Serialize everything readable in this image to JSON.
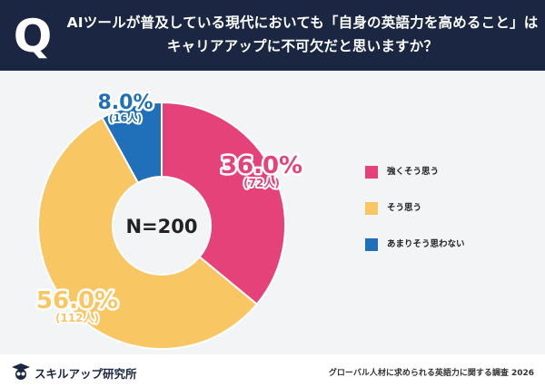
{
  "header": {
    "q_mark": "Q",
    "question_line1": "AIツールが普及している現代においても「自身の英語力を高めること」は",
    "question_line2": "キャリアアップに不可欠だと思いますか？"
  },
  "chart_data": {
    "type": "pie",
    "subtype": "donut",
    "center_label": "N=200",
    "slices": [
      {
        "label": "強くそう思う",
        "percent": 36.0,
        "percent_text": "36.0%",
        "count_text": "(72人)",
        "color": "#e5427a"
      },
      {
        "label": "そう思う",
        "percent": 56.0,
        "percent_text": "56.0%",
        "count_text": "(112人)",
        "color": "#f9c664"
      },
      {
        "label": "あまりそう思わない",
        "percent": 8.0,
        "percent_text": "8.0%",
        "count_text": "(16人)",
        "color": "#1f70b8"
      }
    ],
    "legend_position": "right"
  },
  "footer": {
    "brand_name": "スキルアップ研究所",
    "source": "グローバル人材に求められる英語力に関する調査 2026"
  }
}
